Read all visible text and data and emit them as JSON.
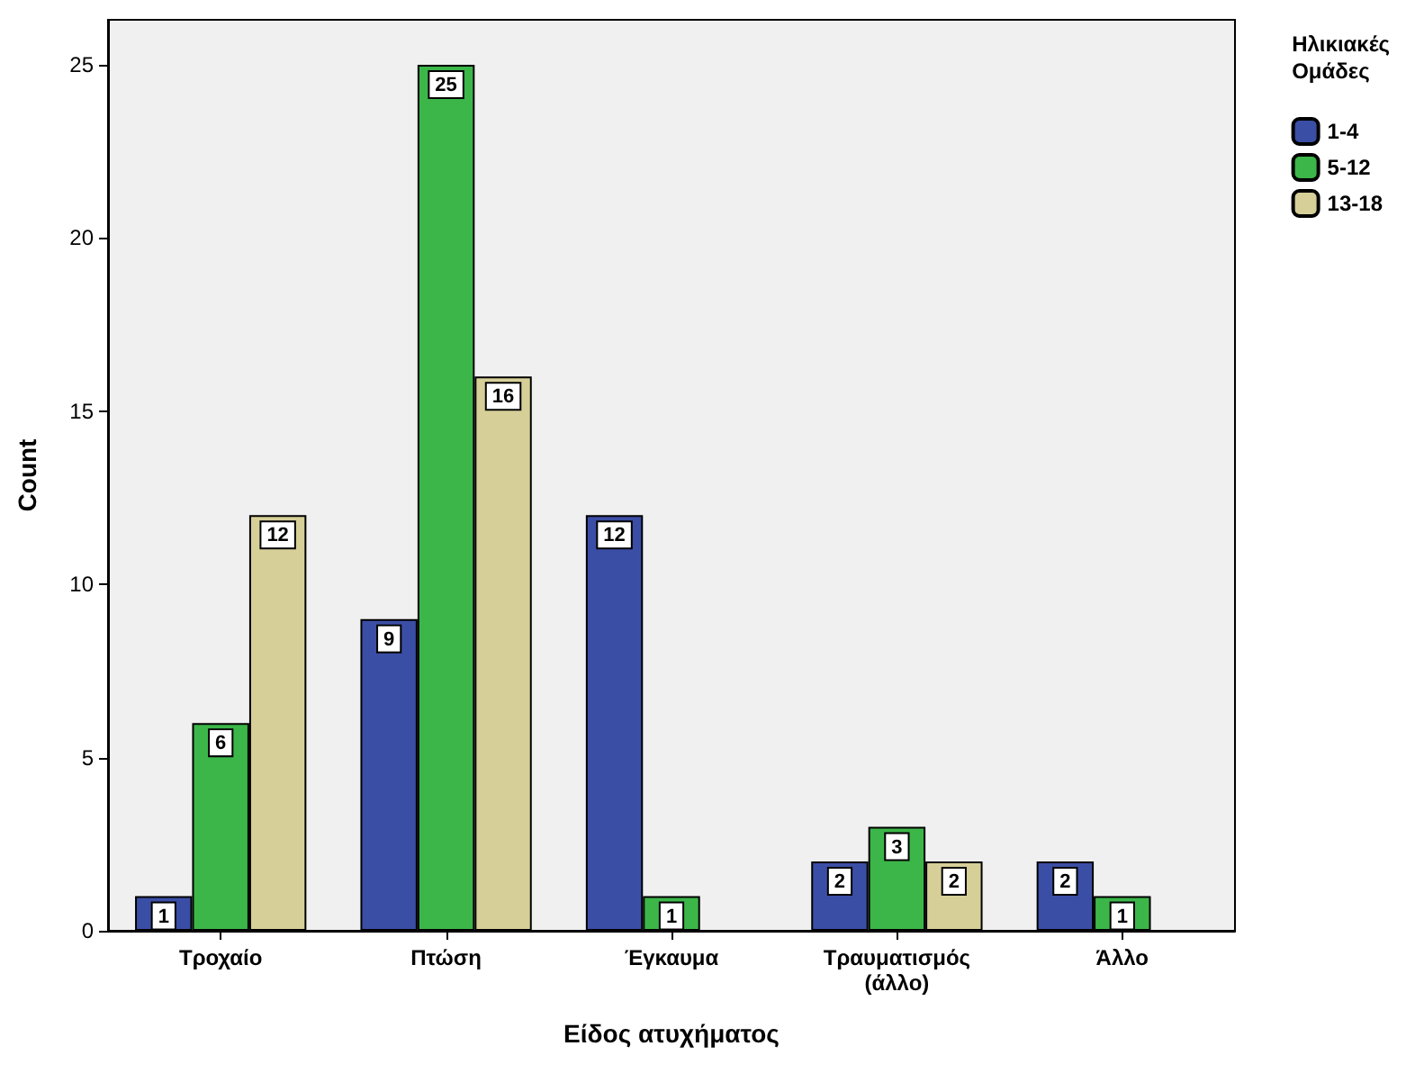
{
  "chart_data": {
    "type": "bar",
    "xlabel": "Είδος ατυχήματος",
    "ylabel": "Count",
    "legend_title": "Ηλικιακές Ομάδες",
    "categories": [
      "Τροχαίο",
      "Πτώση",
      "Έγκαυμα",
      "Τραυματισμός (άλλο)",
      "Άλλο"
    ],
    "series": [
      {
        "name": "1-4",
        "color": "#3b4ea5",
        "values": [
          1,
          9,
          12,
          2,
          2
        ]
      },
      {
        "name": "5-12",
        "color": "#3cb649",
        "values": [
          6,
          25,
          1,
          3,
          1
        ]
      },
      {
        "name": "13-18",
        "color": "#d6cf98",
        "values": [
          12,
          16,
          null,
          2,
          null
        ]
      }
    ],
    "ylim": [
      0,
      26.3
    ],
    "yticks": [
      0,
      5,
      10,
      15,
      20,
      25
    ],
    "grid": false,
    "legend": "right",
    "data_labels": true
  }
}
